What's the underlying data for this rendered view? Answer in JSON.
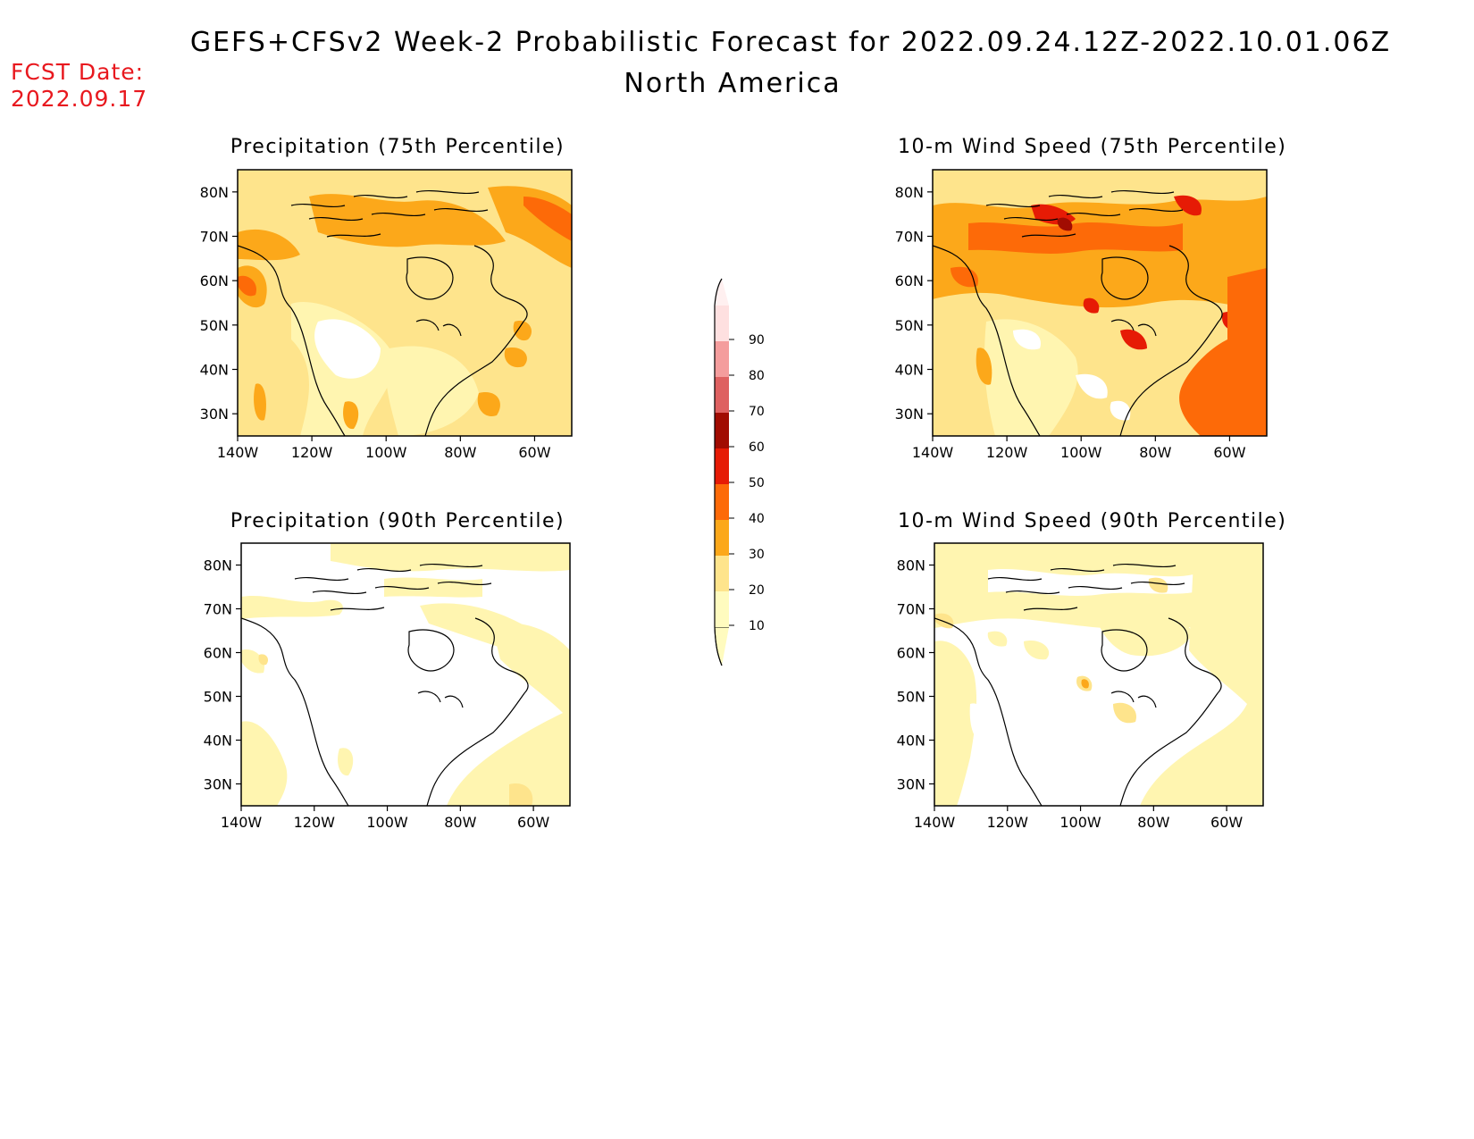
{
  "header": {
    "title": "GEFS+CFSv2 Week-2 Probabilistic Forecast for 2022.09.24.12Z-2022.10.01.06Z",
    "subtitle": "North America",
    "fcst_label": "FCST Date:",
    "fcst_date": "2022.09.17"
  },
  "panels": [
    {
      "title": "Precipitation (75th Percentile)",
      "variable": "precipitation",
      "percentile": 75
    },
    {
      "title": "10-m Wind Speed (75th Percentile)",
      "variable": "wind",
      "percentile": 75
    },
    {
      "title": "Precipitation (90th Percentile)",
      "variable": "precipitation",
      "percentile": 90
    },
    {
      "title": "10-m Wind Speed (90th Percentile)",
      "variable": "wind",
      "percentile": 90
    }
  ],
  "axes": {
    "lon_ticks": [
      "140W",
      "120W",
      "100W",
      "80W",
      "60W"
    ],
    "lat_ticks": [
      "80N",
      "70N",
      "60N",
      "50N",
      "40N",
      "30N"
    ],
    "lon_range": [
      -140,
      -50
    ],
    "lat_range": [
      25,
      85
    ]
  },
  "colorbar": {
    "labels": [
      "10",
      "20",
      "30",
      "40",
      "50",
      "60",
      "70",
      "80",
      "90"
    ],
    "colors": [
      "#fffbbf",
      "#fee48c",
      "#fca81a",
      "#fd6a08",
      "#e61b05",
      "#a10c02",
      "#de6161",
      "#f49d9d",
      "#fee0e0"
    ],
    "top_color": "#fff0f0"
  },
  "colors": {
    "white": "#ffffff",
    "yellow": "#fff5b0",
    "gold": "#fee48c",
    "orange": "#fca81a",
    "dark_orange": "#fd6a08",
    "red": "#e61b05",
    "dark_red": "#a10c02",
    "fcst": "#e8181e"
  }
}
